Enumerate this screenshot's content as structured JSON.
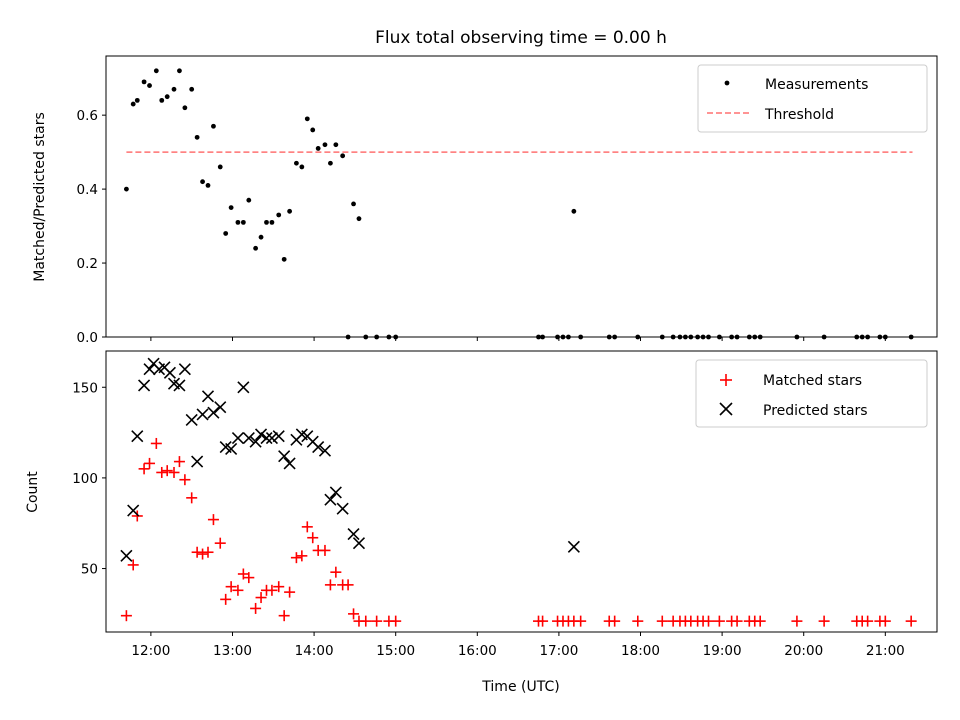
{
  "chart_data": [
    {
      "type": "scatter",
      "title": "Flux total observing time = 0.00 h",
      "xlabel": "",
      "ylabel": "Matched/Predicted stars",
      "xlim": [
        "11:27",
        "21:38"
      ],
      "ylim": [
        0,
        0.76
      ],
      "yticks": [
        0.0,
        0.2,
        0.4,
        0.6
      ],
      "ytick_labels": [
        "0.0",
        "0.2",
        "0.4",
        "0.6"
      ],
      "legend": {
        "placement": "upper right",
        "entries": [
          "Measurements",
          "Threshold"
        ]
      },
      "threshold": {
        "name": "Threshold",
        "value": 0.5,
        "x_start": "11:42",
        "x_end": "21:20",
        "color": "#ff7070",
        "style": "dashed"
      },
      "series": [
        {
          "name": "Measurements",
          "marker": "dot",
          "color": "#000000",
          "points": [
            [
              "11:42",
              0.4
            ],
            [
              "11:47",
              0.63
            ],
            [
              "11:50",
              0.64
            ],
            [
              "11:55",
              0.69
            ],
            [
              "11:59",
              0.68
            ],
            [
              "12:04",
              0.72
            ],
            [
              "12:08",
              0.64
            ],
            [
              "12:12",
              0.65
            ],
            [
              "12:17",
              0.67
            ],
            [
              "12:21",
              0.72
            ],
            [
              "12:25",
              0.62
            ],
            [
              "12:30",
              0.67
            ],
            [
              "12:34",
              0.54
            ],
            [
              "12:38",
              0.42
            ],
            [
              "12:42",
              0.41
            ],
            [
              "12:46",
              0.57
            ],
            [
              "12:51",
              0.46
            ],
            [
              "12:55",
              0.28
            ],
            [
              "12:59",
              0.35
            ],
            [
              "13:04",
              0.31
            ],
            [
              "13:08",
              0.31
            ],
            [
              "13:12",
              0.37
            ],
            [
              "13:17",
              0.24
            ],
            [
              "13:21",
              0.27
            ],
            [
              "13:25",
              0.31
            ],
            [
              "13:29",
              0.31
            ],
            [
              "13:34",
              0.33
            ],
            [
              "13:38",
              0.21
            ],
            [
              "13:42",
              0.34
            ],
            [
              "13:47",
              0.47
            ],
            [
              "13:51",
              0.46
            ],
            [
              "13:55",
              0.59
            ],
            [
              "13:59",
              0.56
            ],
            [
              "14:03",
              0.51
            ],
            [
              "14:08",
              0.52
            ],
            [
              "14:12",
              0.47
            ],
            [
              "14:16",
              0.52
            ],
            [
              "14:21",
              0.49
            ],
            [
              "14:25",
              0.0
            ],
            [
              "14:29",
              0.36
            ],
            [
              "14:33",
              0.32
            ],
            [
              "14:38",
              0.0
            ],
            [
              "14:46",
              0.0
            ],
            [
              "14:55",
              0.0
            ],
            [
              "15:00",
              0.0
            ],
            [
              "16:45",
              0.0
            ],
            [
              "16:48",
              0.0
            ],
            [
              "16:59",
              0.0
            ],
            [
              "17:03",
              0.0
            ],
            [
              "17:07",
              0.0
            ],
            [
              "17:11",
              0.34
            ],
            [
              "17:16",
              0.0
            ],
            [
              "17:37",
              0.0
            ],
            [
              "17:41",
              0.0
            ],
            [
              "17:58",
              0.0
            ],
            [
              "18:16",
              0.0
            ],
            [
              "18:24",
              0.0
            ],
            [
              "18:29",
              0.0
            ],
            [
              "18:33",
              0.0
            ],
            [
              "18:37",
              0.0
            ],
            [
              "18:42",
              0.0
            ],
            [
              "18:46",
              0.0
            ],
            [
              "18:50",
              0.0
            ],
            [
              "18:58",
              0.0
            ],
            [
              "19:07",
              0.0
            ],
            [
              "19:11",
              0.0
            ],
            [
              "19:20",
              0.0
            ],
            [
              "19:24",
              0.0
            ],
            [
              "19:28",
              0.0
            ],
            [
              "19:55",
              0.0
            ],
            [
              "20:15",
              0.0
            ],
            [
              "20:39",
              0.0
            ],
            [
              "20:43",
              0.0
            ],
            [
              "20:47",
              0.0
            ],
            [
              "20:56",
              0.0
            ],
            [
              "21:00",
              0.0
            ],
            [
              "21:19",
              0.0
            ]
          ]
        }
      ]
    },
    {
      "type": "scatter",
      "title": "",
      "xlabel": "Time (UTC)",
      "ylabel": "Count",
      "xlim": [
        "11:27",
        "21:38"
      ],
      "ylim": [
        15,
        170
      ],
      "yticks": [
        50,
        100,
        150
      ],
      "ytick_labels": [
        "50",
        "100",
        "150"
      ],
      "xticks": [
        "12:00",
        "13:00",
        "14:00",
        "15:00",
        "16:00",
        "17:00",
        "18:00",
        "19:00",
        "20:00",
        "21:00"
      ],
      "legend": {
        "placement": "upper right",
        "entries": [
          "Matched stars",
          "Predicted stars"
        ]
      },
      "series": [
        {
          "name": "Matched stars",
          "marker": "plus",
          "color": "#ff0000",
          "points": [
            [
              "11:42",
              24
            ],
            [
              "11:47",
              52
            ],
            [
              "11:50",
              79
            ],
            [
              "11:55",
              105
            ],
            [
              "11:59",
              108
            ],
            [
              "12:04",
              119
            ],
            [
              "12:08",
              103
            ],
            [
              "12:12",
              104
            ],
            [
              "12:17",
              103
            ],
            [
              "12:21",
              109
            ],
            [
              "12:25",
              99
            ],
            [
              "12:30",
              89
            ],
            [
              "12:34",
              59
            ],
            [
              "12:38",
              58
            ],
            [
              "12:42",
              59
            ],
            [
              "12:46",
              77
            ],
            [
              "12:51",
              64
            ],
            [
              "12:55",
              33
            ],
            [
              "12:59",
              40
            ],
            [
              "13:04",
              38
            ],
            [
              "13:08",
              47
            ],
            [
              "13:12",
              45
            ],
            [
              "13:17",
              28
            ],
            [
              "13:21",
              34
            ],
            [
              "13:25",
              38
            ],
            [
              "13:29",
              38
            ],
            [
              "13:34",
              40
            ],
            [
              "13:38",
              24
            ],
            [
              "13:42",
              37
            ],
            [
              "13:47",
              56
            ],
            [
              "13:51",
              57
            ],
            [
              "13:55",
              73
            ],
            [
              "13:59",
              67
            ],
            [
              "14:03",
              60
            ],
            [
              "14:08",
              60
            ],
            [
              "14:12",
              41
            ],
            [
              "14:16",
              48
            ],
            [
              "14:21",
              41
            ],
            [
              "14:25",
              41
            ],
            [
              "14:29",
              25
            ],
            [
              "14:33",
              21
            ],
            [
              "14:38",
              21
            ],
            [
              "14:46",
              21
            ],
            [
              "14:55",
              21
            ],
            [
              "15:00",
              21
            ],
            [
              "16:45",
              21
            ],
            [
              "16:48",
              21
            ],
            [
              "16:59",
              21
            ],
            [
              "17:03",
              21
            ],
            [
              "17:07",
              21
            ],
            [
              "17:11",
              21
            ],
            [
              "17:16",
              21
            ],
            [
              "17:37",
              21
            ],
            [
              "17:41",
              21
            ],
            [
              "17:58",
              21
            ],
            [
              "18:16",
              21
            ],
            [
              "18:24",
              21
            ],
            [
              "18:29",
              21
            ],
            [
              "18:33",
              21
            ],
            [
              "18:37",
              21
            ],
            [
              "18:42",
              21
            ],
            [
              "18:46",
              21
            ],
            [
              "18:50",
              21
            ],
            [
              "18:58",
              21
            ],
            [
              "19:07",
              21
            ],
            [
              "19:11",
              21
            ],
            [
              "19:20",
              21
            ],
            [
              "19:24",
              21
            ],
            [
              "19:28",
              21
            ],
            [
              "19:55",
              21
            ],
            [
              "20:15",
              21
            ],
            [
              "20:39",
              21
            ],
            [
              "20:43",
              21
            ],
            [
              "20:47",
              21
            ],
            [
              "20:56",
              21
            ],
            [
              "21:00",
              21
            ],
            [
              "21:19",
              21
            ]
          ]
        },
        {
          "name": "Predicted stars",
          "marker": "x",
          "color": "#000000",
          "points": [
            [
              "11:42",
              57
            ],
            [
              "11:47",
              82
            ],
            [
              "11:50",
              123
            ],
            [
              "11:55",
              151
            ],
            [
              "11:59",
              160
            ],
            [
              "12:02",
              163
            ],
            [
              "12:06",
              160
            ],
            [
              "12:10",
              161
            ],
            [
              "12:14",
              158
            ],
            [
              "12:17",
              152
            ],
            [
              "12:21",
              151
            ],
            [
              "12:25",
              160
            ],
            [
              "12:34",
              109
            ],
            [
              "12:30",
              132
            ],
            [
              "12:38",
              135
            ],
            [
              "12:42",
              145
            ],
            [
              "12:46",
              136
            ],
            [
              "12:51",
              139
            ],
            [
              "12:55",
              117
            ],
            [
              "12:59",
              116
            ],
            [
              "13:04",
              122
            ],
            [
              "13:08",
              150
            ],
            [
              "13:12",
              122
            ],
            [
              "13:17",
              120
            ],
            [
              "13:21",
              124
            ],
            [
              "13:25",
              122
            ],
            [
              "13:29",
              122
            ],
            [
              "13:34",
              123
            ],
            [
              "13:38",
              112
            ],
            [
              "13:42",
              108
            ],
            [
              "13:47",
              121
            ],
            [
              "13:51",
              124
            ],
            [
              "13:55",
              123
            ],
            [
              "13:59",
              120
            ],
            [
              "14:03",
              117
            ],
            [
              "14:08",
              115
            ],
            [
              "14:12",
              88
            ],
            [
              "14:16",
              92
            ],
            [
              "14:21",
              83
            ],
            [
              "14:29",
              69
            ],
            [
              "14:33",
              64
            ],
            [
              "17:11",
              62
            ]
          ]
        }
      ]
    }
  ]
}
